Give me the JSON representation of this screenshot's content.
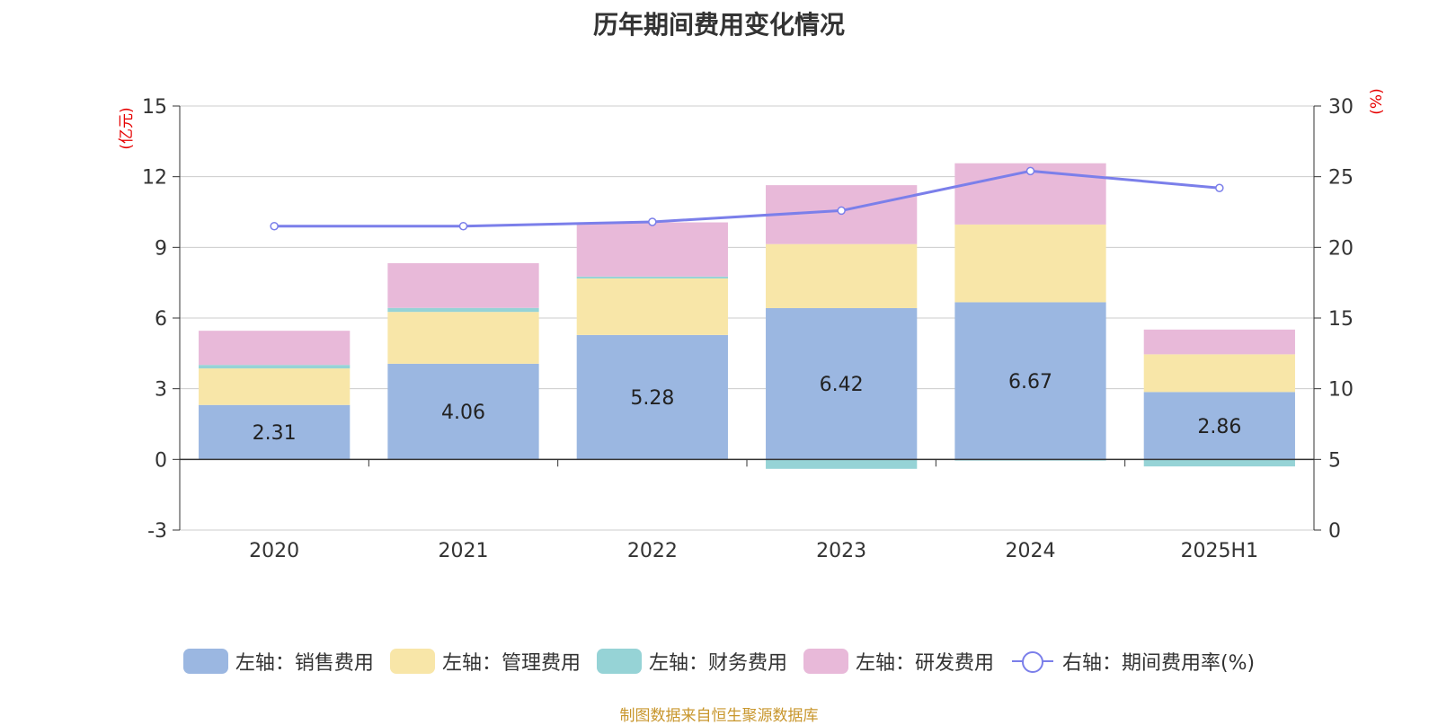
{
  "chart_data": {
    "type": "bar",
    "title": "历年期间费用变化情况",
    "categories": [
      "2020",
      "2021",
      "2022",
      "2023",
      "2024",
      "2025H1"
    ],
    "left_axis": {
      "unit": "(亿元)",
      "ylim": [
        -3,
        15
      ],
      "ticks": [
        "-3",
        "0",
        "3",
        "6",
        "9",
        "12",
        "15"
      ]
    },
    "right_axis": {
      "unit": "(%)",
      "ylim": [
        0,
        30
      ],
      "ticks": [
        "0",
        "5",
        "10",
        "15",
        "20",
        "25",
        "30"
      ]
    },
    "series": [
      {
        "name": "左轴：销售费用",
        "type": "bar",
        "axis": "left",
        "color": "#9bb7e1",
        "values": [
          2.31,
          4.06,
          5.28,
          6.42,
          6.67,
          2.86
        ],
        "labels": [
          "2.31",
          "4.06",
          "5.28",
          "6.42",
          "6.67",
          "2.86"
        ]
      },
      {
        "name": "左轴：管理费用",
        "type": "bar",
        "axis": "left",
        "color": "#f8e6a8",
        "values": [
          1.55,
          2.2,
          2.4,
          2.72,
          3.3,
          1.6
        ]
      },
      {
        "name": "左轴：财务费用",
        "type": "bar",
        "axis": "left",
        "color": "#96d3d6",
        "values": [
          0.15,
          0.17,
          0.08,
          -0.4,
          -0.05,
          -0.3
        ]
      },
      {
        "name": "左轴：研发费用",
        "type": "bar",
        "axis": "left",
        "color": "#e8b9d9",
        "values": [
          1.45,
          1.9,
          2.3,
          2.5,
          2.6,
          1.05
        ]
      },
      {
        "name": "右轴：期间费用率(%)",
        "type": "line",
        "axis": "right",
        "color": "#7b7fea",
        "values": [
          21.5,
          21.5,
          21.8,
          22.6,
          25.4,
          24.2
        ]
      }
    ],
    "grid": true,
    "legend_position": "bottom"
  },
  "source_note": "制图数据来自恒生聚源数据库"
}
